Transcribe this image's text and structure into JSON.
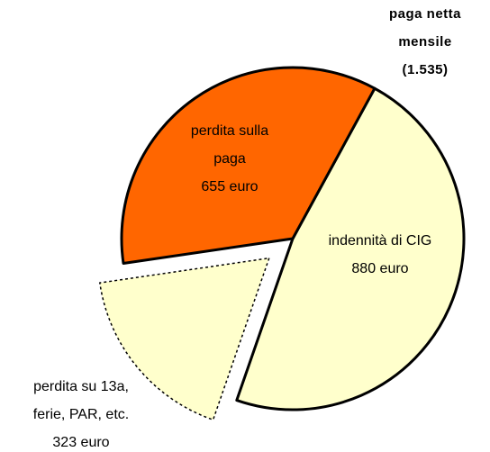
{
  "chart_data": {
    "type": "pie",
    "title": [
      "paga netta",
      "mensile",
      "(1.535)"
    ],
    "categories": [
      [
        "indennità di CIG"
      ],
      [
        "perdita su 13a,",
        "ferie, PAR, etc."
      ],
      [
        "perdita sulla",
        "paga"
      ]
    ],
    "values": [
      880,
      323,
      655
    ],
    "value_labels": [
      "880 euro",
      "323 euro",
      "655 euro"
    ],
    "colors": [
      "#ffffcc",
      "#ffffcc",
      "#ff6600"
    ],
    "explode": [
      false,
      true,
      false
    ]
  }
}
